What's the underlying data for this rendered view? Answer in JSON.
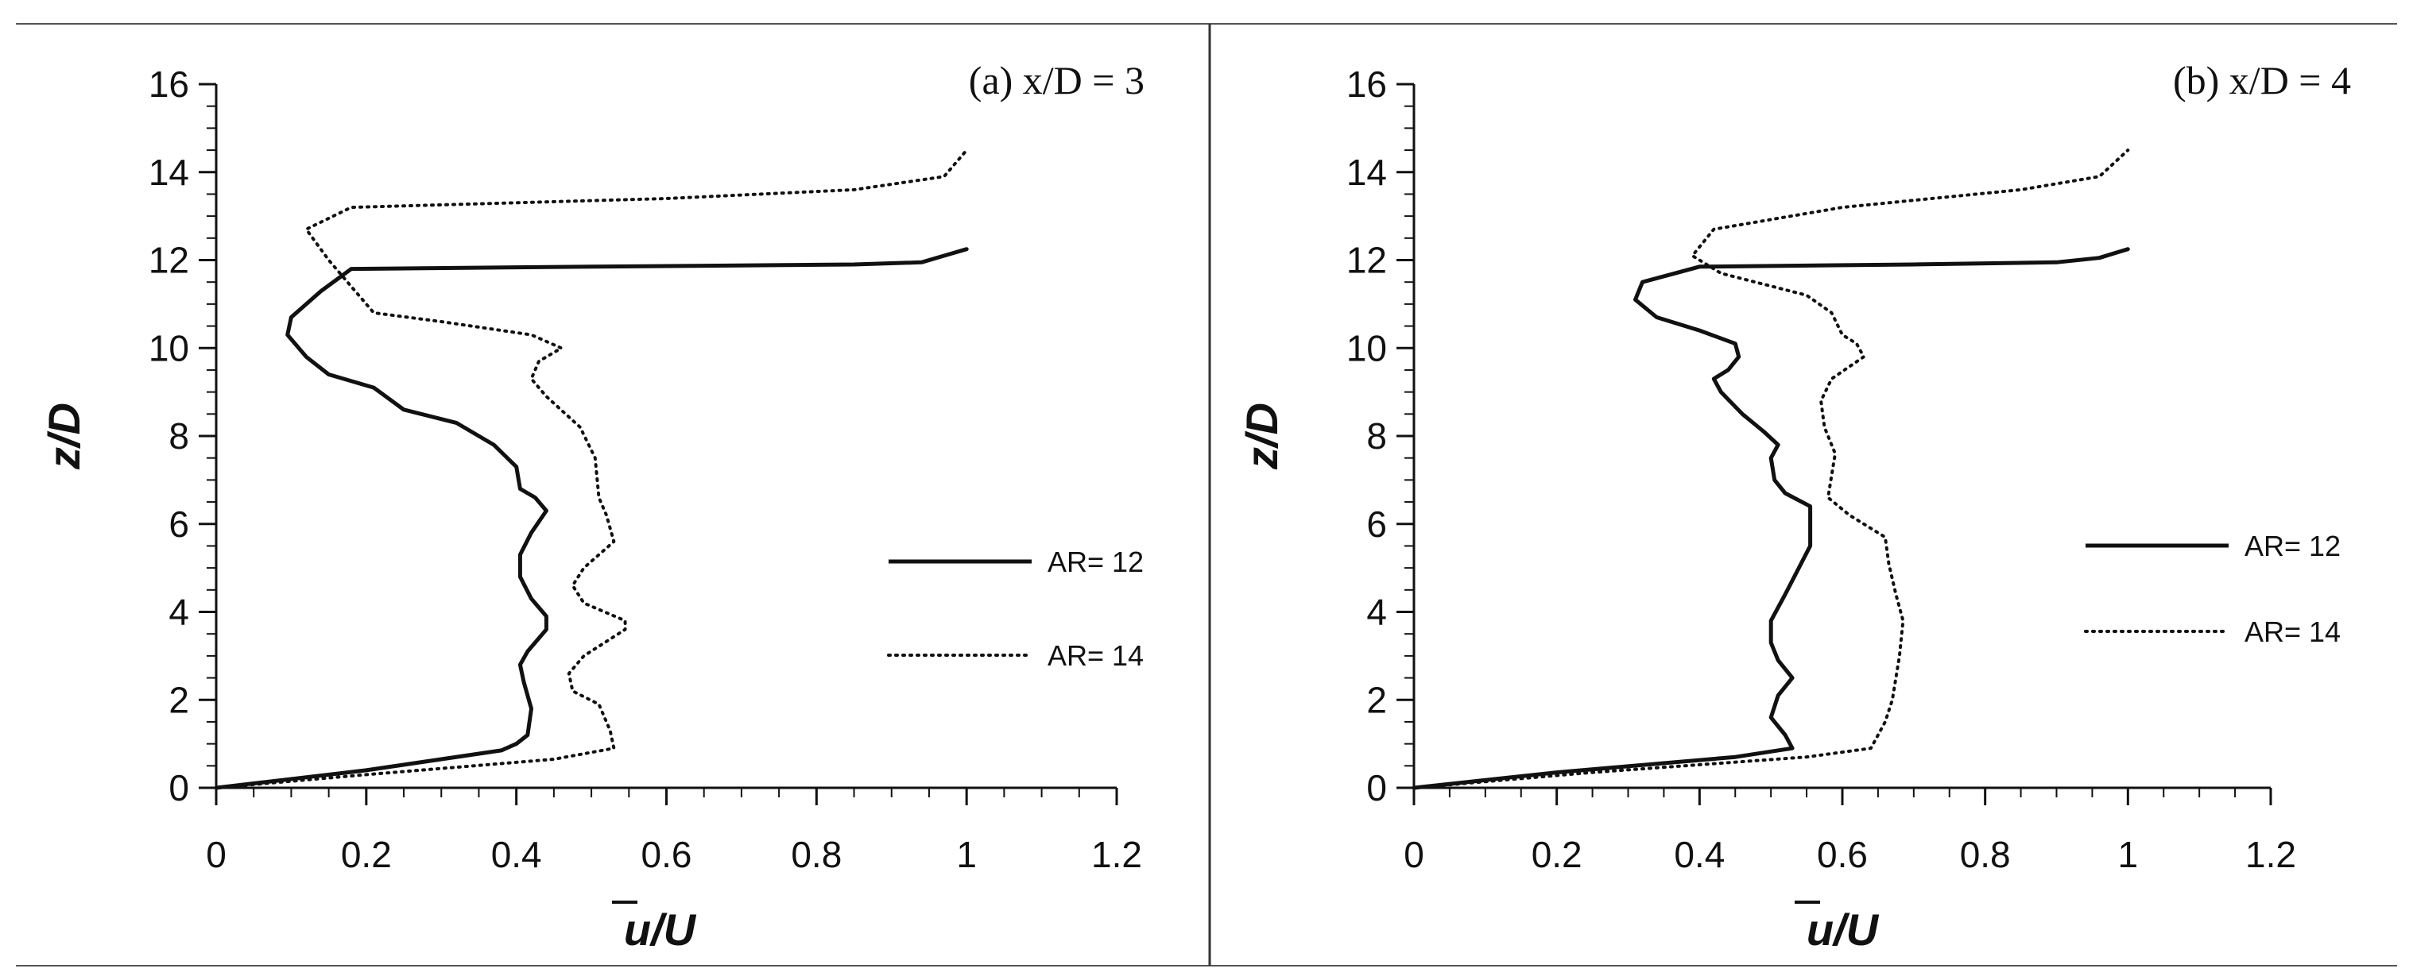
{
  "chart_data": [
    {
      "type": "line",
      "title": "(a) x/D = 3",
      "xlabel": "u/U",
      "ylabel": "z/D",
      "xlim": [
        0,
        1.2
      ],
      "ylim": [
        0,
        16
      ],
      "xticks": [
        "0",
        "0.2",
        "0.4",
        "0.6",
        "0.8",
        "1",
        "1.2"
      ],
      "yticks": [
        "0",
        "2",
        "4",
        "6",
        "8",
        "10",
        "12",
        "14",
        "16"
      ],
      "legend_position": "right",
      "grid": false,
      "series": [
        {
          "name": "AR= 12",
          "style": "solid",
          "points": [
            [
              0,
              0
            ],
            [
              0.2,
              0.4
            ],
            [
              0.38,
              0.85
            ],
            [
              0.4,
              1.0
            ],
            [
              0.415,
              1.2
            ],
            [
              0.42,
              1.8
            ],
            [
              0.41,
              2.4
            ],
            [
              0.405,
              2.8
            ],
            [
              0.415,
              3.1
            ],
            [
              0.44,
              3.6
            ],
            [
              0.44,
              3.9
            ],
            [
              0.42,
              4.3
            ],
            [
              0.405,
              4.8
            ],
            [
              0.405,
              5.3
            ],
            [
              0.42,
              5.8
            ],
            [
              0.44,
              6.3
            ],
            [
              0.425,
              6.6
            ],
            [
              0.405,
              6.8
            ],
            [
              0.4,
              7.3
            ],
            [
              0.37,
              7.8
            ],
            [
              0.32,
              8.3
            ],
            [
              0.25,
              8.6
            ],
            [
              0.21,
              9.1
            ],
            [
              0.15,
              9.4
            ],
            [
              0.12,
              9.8
            ],
            [
              0.095,
              10.3
            ],
            [
              0.1,
              10.7
            ],
            [
              0.14,
              11.3
            ],
            [
              0.18,
              11.8
            ],
            [
              0.5,
              11.85
            ],
            [
              0.85,
              11.9
            ],
            [
              0.94,
              11.95
            ],
            [
              0.97,
              12.1
            ],
            [
              1.0,
              12.25
            ]
          ]
        },
        {
          "name": "AR= 14",
          "style": "dotted",
          "points": [
            [
              0,
              0
            ],
            [
              0.2,
              0.3
            ],
            [
              0.45,
              0.65
            ],
            [
              0.53,
              0.9
            ],
            [
              0.525,
              1.3
            ],
            [
              0.51,
              1.9
            ],
            [
              0.475,
              2.2
            ],
            [
              0.47,
              2.6
            ],
            [
              0.49,
              3.0
            ],
            [
              0.545,
              3.6
            ],
            [
              0.545,
              3.8
            ],
            [
              0.49,
              4.2
            ],
            [
              0.475,
              4.6
            ],
            [
              0.49,
              5.0
            ],
            [
              0.53,
              5.6
            ],
            [
              0.52,
              6.2
            ],
            [
              0.51,
              6.6
            ],
            [
              0.505,
              7.5
            ],
            [
              0.485,
              8.2
            ],
            [
              0.44,
              8.9
            ],
            [
              0.42,
              9.3
            ],
            [
              0.43,
              9.7
            ],
            [
              0.46,
              10.0
            ],
            [
              0.42,
              10.3
            ],
            [
              0.3,
              10.6
            ],
            [
              0.21,
              10.8
            ],
            [
              0.18,
              11.4
            ],
            [
              0.15,
              12.0
            ],
            [
              0.12,
              12.7
            ],
            [
              0.18,
              13.2
            ],
            [
              0.6,
              13.4
            ],
            [
              0.85,
              13.6
            ],
            [
              0.97,
              13.9
            ],
            [
              1.0,
              14.5
            ]
          ]
        }
      ]
    },
    {
      "type": "line",
      "title": "(b) x/D = 4",
      "xlabel": "u/U",
      "ylabel": "z/D",
      "xlim": [
        0,
        1.2
      ],
      "ylim": [
        0,
        16
      ],
      "xticks": [
        "0",
        "0.2",
        "0.4",
        "0.6",
        "0.8",
        "1",
        "1.2"
      ],
      "yticks": [
        "0",
        "2",
        "4",
        "6",
        "8",
        "10",
        "12",
        "14",
        "16"
      ],
      "legend_position": "right",
      "grid": false,
      "series": [
        {
          "name": "AR= 12",
          "style": "solid",
          "points": [
            [
              0,
              0
            ],
            [
              0.2,
              0.35
            ],
            [
              0.45,
              0.7
            ],
            [
              0.53,
              0.9
            ],
            [
              0.52,
              1.2
            ],
            [
              0.5,
              1.6
            ],
            [
              0.51,
              2.1
            ],
            [
              0.53,
              2.5
            ],
            [
              0.51,
              2.9
            ],
            [
              0.5,
              3.3
            ],
            [
              0.5,
              3.8
            ],
            [
              0.52,
              4.4
            ],
            [
              0.555,
              5.5
            ],
            [
              0.555,
              6.4
            ],
            [
              0.52,
              6.7
            ],
            [
              0.505,
              7.0
            ],
            [
              0.5,
              7.5
            ],
            [
              0.51,
              7.8
            ],
            [
              0.49,
              8.1
            ],
            [
              0.46,
              8.5
            ],
            [
              0.43,
              9.0
            ],
            [
              0.42,
              9.3
            ],
            [
              0.44,
              9.5
            ],
            [
              0.455,
              9.8
            ],
            [
              0.45,
              10.1
            ],
            [
              0.4,
              10.4
            ],
            [
              0.34,
              10.7
            ],
            [
              0.31,
              11.1
            ],
            [
              0.32,
              11.5
            ],
            [
              0.4,
              11.85
            ],
            [
              0.7,
              11.9
            ],
            [
              0.9,
              11.95
            ],
            [
              0.96,
              12.05
            ],
            [
              1.0,
              12.25
            ]
          ]
        },
        {
          "name": "AR= 14",
          "style": "dotted",
          "points": [
            [
              0,
              0
            ],
            [
              0.25,
              0.35
            ],
            [
              0.55,
              0.7
            ],
            [
              0.64,
              0.9
            ],
            [
              0.66,
              1.5
            ],
            [
              0.67,
              2.0
            ],
            [
              0.68,
              3.0
            ],
            [
              0.685,
              3.8
            ],
            [
              0.675,
              4.4
            ],
            [
              0.665,
              5.1
            ],
            [
              0.66,
              5.7
            ],
            [
              0.61,
              6.2
            ],
            [
              0.58,
              6.6
            ],
            [
              0.585,
              7.1
            ],
            [
              0.59,
              7.6
            ],
            [
              0.575,
              8.2
            ],
            [
              0.57,
              8.8
            ],
            [
              0.585,
              9.3
            ],
            [
              0.63,
              9.8
            ],
            [
              0.62,
              10.1
            ],
            [
              0.6,
              10.3
            ],
            [
              0.585,
              10.8
            ],
            [
              0.55,
              11.2
            ],
            [
              0.43,
              11.7
            ],
            [
              0.39,
              12.1
            ],
            [
              0.42,
              12.7
            ],
            [
              0.6,
              13.2
            ],
            [
              0.85,
              13.6
            ],
            [
              0.96,
              13.9
            ],
            [
              1.0,
              14.5
            ]
          ]
        }
      ]
    }
  ]
}
